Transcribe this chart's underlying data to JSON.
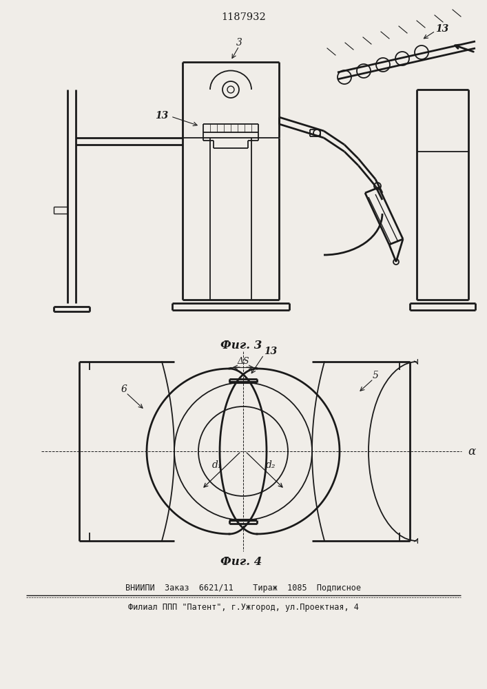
{
  "patent_number": "1187932",
  "fig3_label": "Фиг. 3",
  "fig4_label": "Фиг. 4",
  "footer_line1": "ВНИИПИ  Заказ  6621/11    Тираж  1085  Подписное",
  "footer_line2": "Филиал ППП \"Патент\", г.Ужгород, ул.Проектная, 4",
  "bg_color": "#f0ede8",
  "line_color": "#1a1a1a",
  "label_3": "3",
  "label_13a": "13",
  "label_13b": "13",
  "label_6": "6",
  "label_5": "5",
  "label_13c": "13",
  "label_d1": "d₁",
  "label_d2": "d₂",
  "label_alpha": "α",
  "label_delta_s": "ΔS"
}
